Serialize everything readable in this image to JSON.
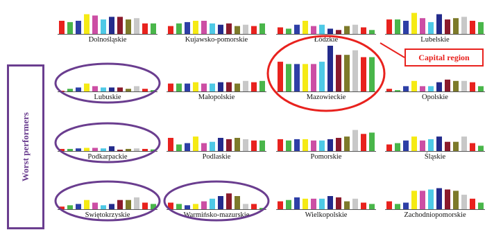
{
  "side_label": "Worst performers",
  "callout_label": "Capital region",
  "colors": {
    "bar_palette": [
      "#e8221e",
      "#49b64a",
      "#2d3fa6",
      "#f5ea14",
      "#cc4ea4",
      "#4ec9e6",
      "#232b8c",
      "#8b1a2b",
      "#7d7a2a",
      "#c8c8c8",
      "#e8221e",
      "#49b64a"
    ],
    "highlight_worst": "#6a3d8f",
    "highlight_capital": "#e8221e"
  },
  "chart_data": {
    "type": "bar",
    "description_series_count": 12,
    "panels": [
      {
        "region": "Dolnośląskie",
        "values": [
          0.5,
          0.45,
          0.5,
          0.75,
          0.7,
          0.55,
          0.65,
          0.65,
          0.55,
          0.6,
          0.4,
          0.4
        ]
      },
      {
        "region": "Kujawsko-pomorskie",
        "values": [
          0.3,
          0.4,
          0.45,
          0.5,
          0.5,
          0.4,
          0.35,
          0.4,
          0.3,
          0.35,
          0.3,
          0.4
        ]
      },
      {
        "region": "Łódzkie",
        "values": [
          0.25,
          0.2,
          0.35,
          0.5,
          0.3,
          0.35,
          0.2,
          0.15,
          0.3,
          0.35,
          0.25,
          0.15
        ]
      },
      {
        "region": "Lubelskie",
        "values": [
          0.55,
          0.55,
          0.5,
          0.8,
          0.6,
          0.45,
          0.75,
          0.55,
          0.6,
          0.65,
          0.5,
          0.45
        ]
      },
      {
        "region": "Lubuskie",
        "values": [
          0.02,
          0.1,
          0.15,
          0.3,
          0.2,
          0.15,
          0.15,
          0.15,
          0.1,
          0.2,
          0.1,
          0.05
        ]
      },
      {
        "region": "Małopolskie",
        "values": [
          0.3,
          0.3,
          0.3,
          0.35,
          0.3,
          0.3,
          0.35,
          0.35,
          0.3,
          0.4,
          0.35,
          0.4
        ]
      },
      {
        "region": "Mazowieckie",
        "values": [
          0.65,
          0.6,
          0.6,
          0.6,
          0.6,
          0.65,
          1.0,
          0.8,
          0.8,
          0.9,
          0.75,
          0.75
        ]
      },
      {
        "region": "Opolskie",
        "values": [
          0.1,
          0.05,
          0.2,
          0.4,
          0.2,
          0.2,
          0.35,
          0.45,
          0.4,
          0.4,
          0.35,
          0.2
        ]
      },
      {
        "region": "Podkarpackie",
        "values": [
          0.08,
          0.08,
          0.1,
          0.12,
          0.12,
          0.1,
          0.18,
          0.05,
          0.08,
          0.1,
          0.08,
          0.06
        ]
      },
      {
        "region": "Podlaskie",
        "values": [
          0.5,
          0.25,
          0.3,
          0.55,
          0.3,
          0.35,
          0.5,
          0.45,
          0.5,
          0.45,
          0.4,
          0.4
        ]
      },
      {
        "region": "Pomorskie",
        "values": [
          0.45,
          0.4,
          0.45,
          0.45,
          0.4,
          0.4,
          0.45,
          0.5,
          0.55,
          0.8,
          0.65,
          0.7
        ]
      },
      {
        "region": "Śląskie",
        "values": [
          0.25,
          0.3,
          0.4,
          0.55,
          0.4,
          0.45,
          0.55,
          0.35,
          0.35,
          0.55,
          0.3,
          0.2
        ]
      },
      {
        "region": "Swiętokrzyskie",
        "values": [
          0.1,
          0.15,
          0.2,
          0.35,
          0.25,
          0.15,
          0.2,
          0.35,
          0.35,
          0.45,
          0.25,
          0.2
        ]
      },
      {
        "region": "Warmińsko-mazurskie",
        "values": [
          0.25,
          0.2,
          0.15,
          0.2,
          0.3,
          0.4,
          0.5,
          0.6,
          0.5,
          0.2,
          0.2,
          0.05
        ]
      },
      {
        "region": "Wielkopolskie",
        "values": [
          0.3,
          0.35,
          0.45,
          0.4,
          0.4,
          0.4,
          0.5,
          0.45,
          0.3,
          0.4,
          0.25,
          0.2
        ]
      },
      {
        "region": "Zachodniopomorskie",
        "values": [
          0.3,
          0.2,
          0.25,
          0.7,
          0.7,
          0.75,
          0.8,
          0.75,
          0.7,
          0.55,
          0.4,
          0.25
        ]
      }
    ],
    "highlighted_worst": [
      "Lubuskie",
      "Podkarpackie",
      "Swiętokrzyskie",
      "Warmińsko-mazurskie"
    ],
    "highlighted_capital": [
      "Mazowieckie"
    ]
  }
}
